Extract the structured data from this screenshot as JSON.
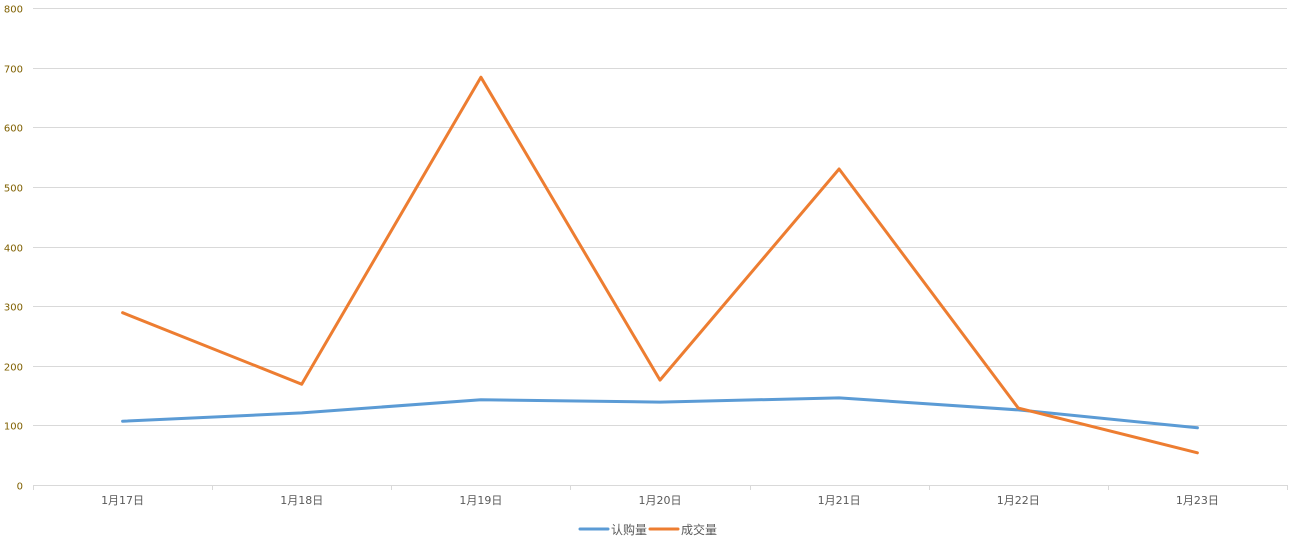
{
  "chart_data": {
    "type": "line",
    "categories": [
      "1月17日",
      "1月18日",
      "1月19日",
      "1月20日",
      "1月21日",
      "1月22日",
      "1月23日"
    ],
    "series": [
      {
        "name": "认购量",
        "color": "#5b9bd5",
        "values": [
          107,
          121,
          143,
          139,
          146,
          126,
          96
        ]
      },
      {
        "name": "成交量",
        "color": "#ed7d31",
        "values": [
          289,
          169,
          684,
          176,
          530,
          129,
          54
        ]
      }
    ],
    "ylim": [
      0,
      800
    ],
    "yticks": [
      0,
      100,
      200,
      300,
      400,
      500,
      600,
      700,
      800
    ],
    "grid": true,
    "legend": "bottom"
  }
}
